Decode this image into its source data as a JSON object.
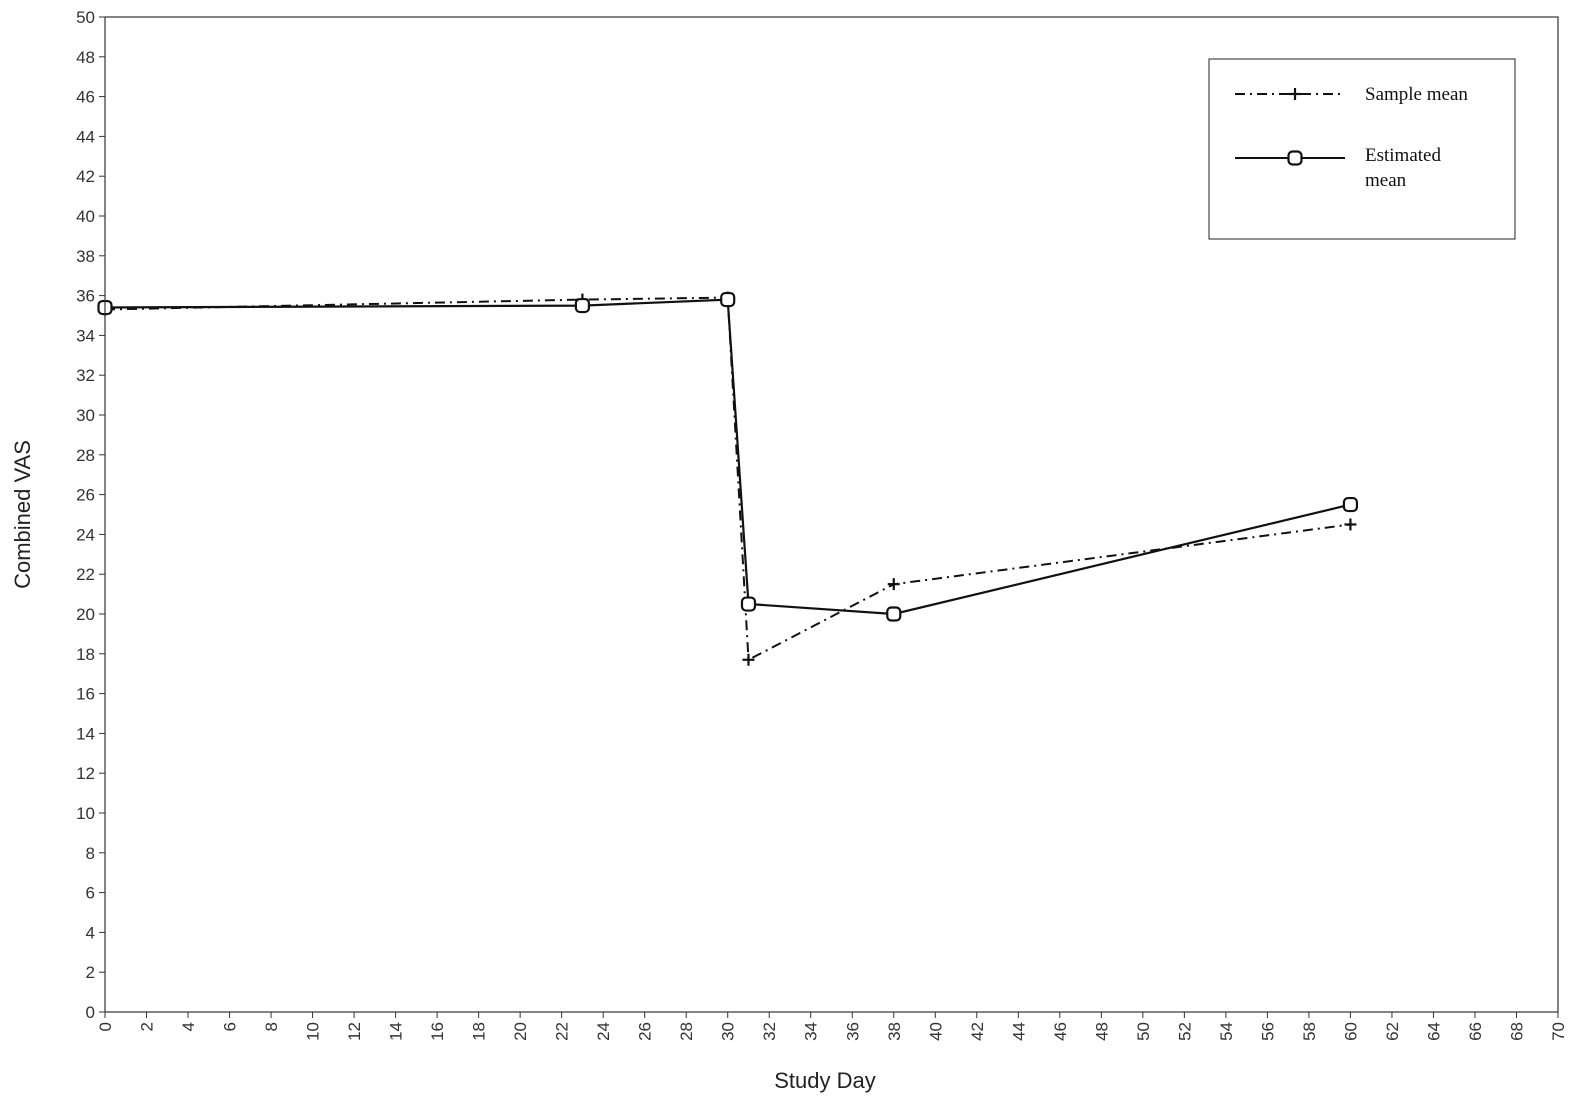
{
  "chart_data": {
    "type": "line",
    "title": "",
    "xlabel": "Study Day",
    "ylabel": "Combined VAS",
    "xlim": [
      0,
      70
    ],
    "ylim": [
      0,
      50
    ],
    "x_ticks": [
      0,
      2,
      4,
      6,
      8,
      10,
      12,
      14,
      16,
      18,
      20,
      22,
      24,
      26,
      28,
      30,
      32,
      34,
      36,
      38,
      40,
      42,
      44,
      46,
      48,
      50,
      52,
      54,
      56,
      58,
      60,
      62,
      64,
      66,
      68,
      70
    ],
    "y_ticks": [
      0,
      2,
      4,
      6,
      8,
      10,
      12,
      14,
      16,
      18,
      20,
      22,
      24,
      26,
      28,
      30,
      32,
      34,
      36,
      38,
      40,
      42,
      44,
      46,
      48,
      50
    ],
    "grid": false,
    "legend_position": "top-right",
    "series": [
      {
        "name": "Sample mean",
        "line_style": "dash-dot",
        "marker": "plus",
        "color": "#111111",
        "x": [
          0,
          23,
          30,
          31,
          38,
          60
        ],
        "y": [
          35.3,
          35.8,
          35.9,
          17.7,
          21.5,
          24.5
        ]
      },
      {
        "name": "Estimated mean",
        "line_style": "solid",
        "marker": "circle-square",
        "color": "#111111",
        "x": [
          0,
          23,
          30,
          31,
          38,
          60
        ],
        "y": [
          35.4,
          35.5,
          35.8,
          20.5,
          20.0,
          25.5
        ]
      }
    ]
  },
  "legend": {
    "items": [
      {
        "label_lines": [
          "Sample mean"
        ]
      },
      {
        "label_lines": [
          "Estimated",
          "mean"
        ]
      }
    ]
  }
}
